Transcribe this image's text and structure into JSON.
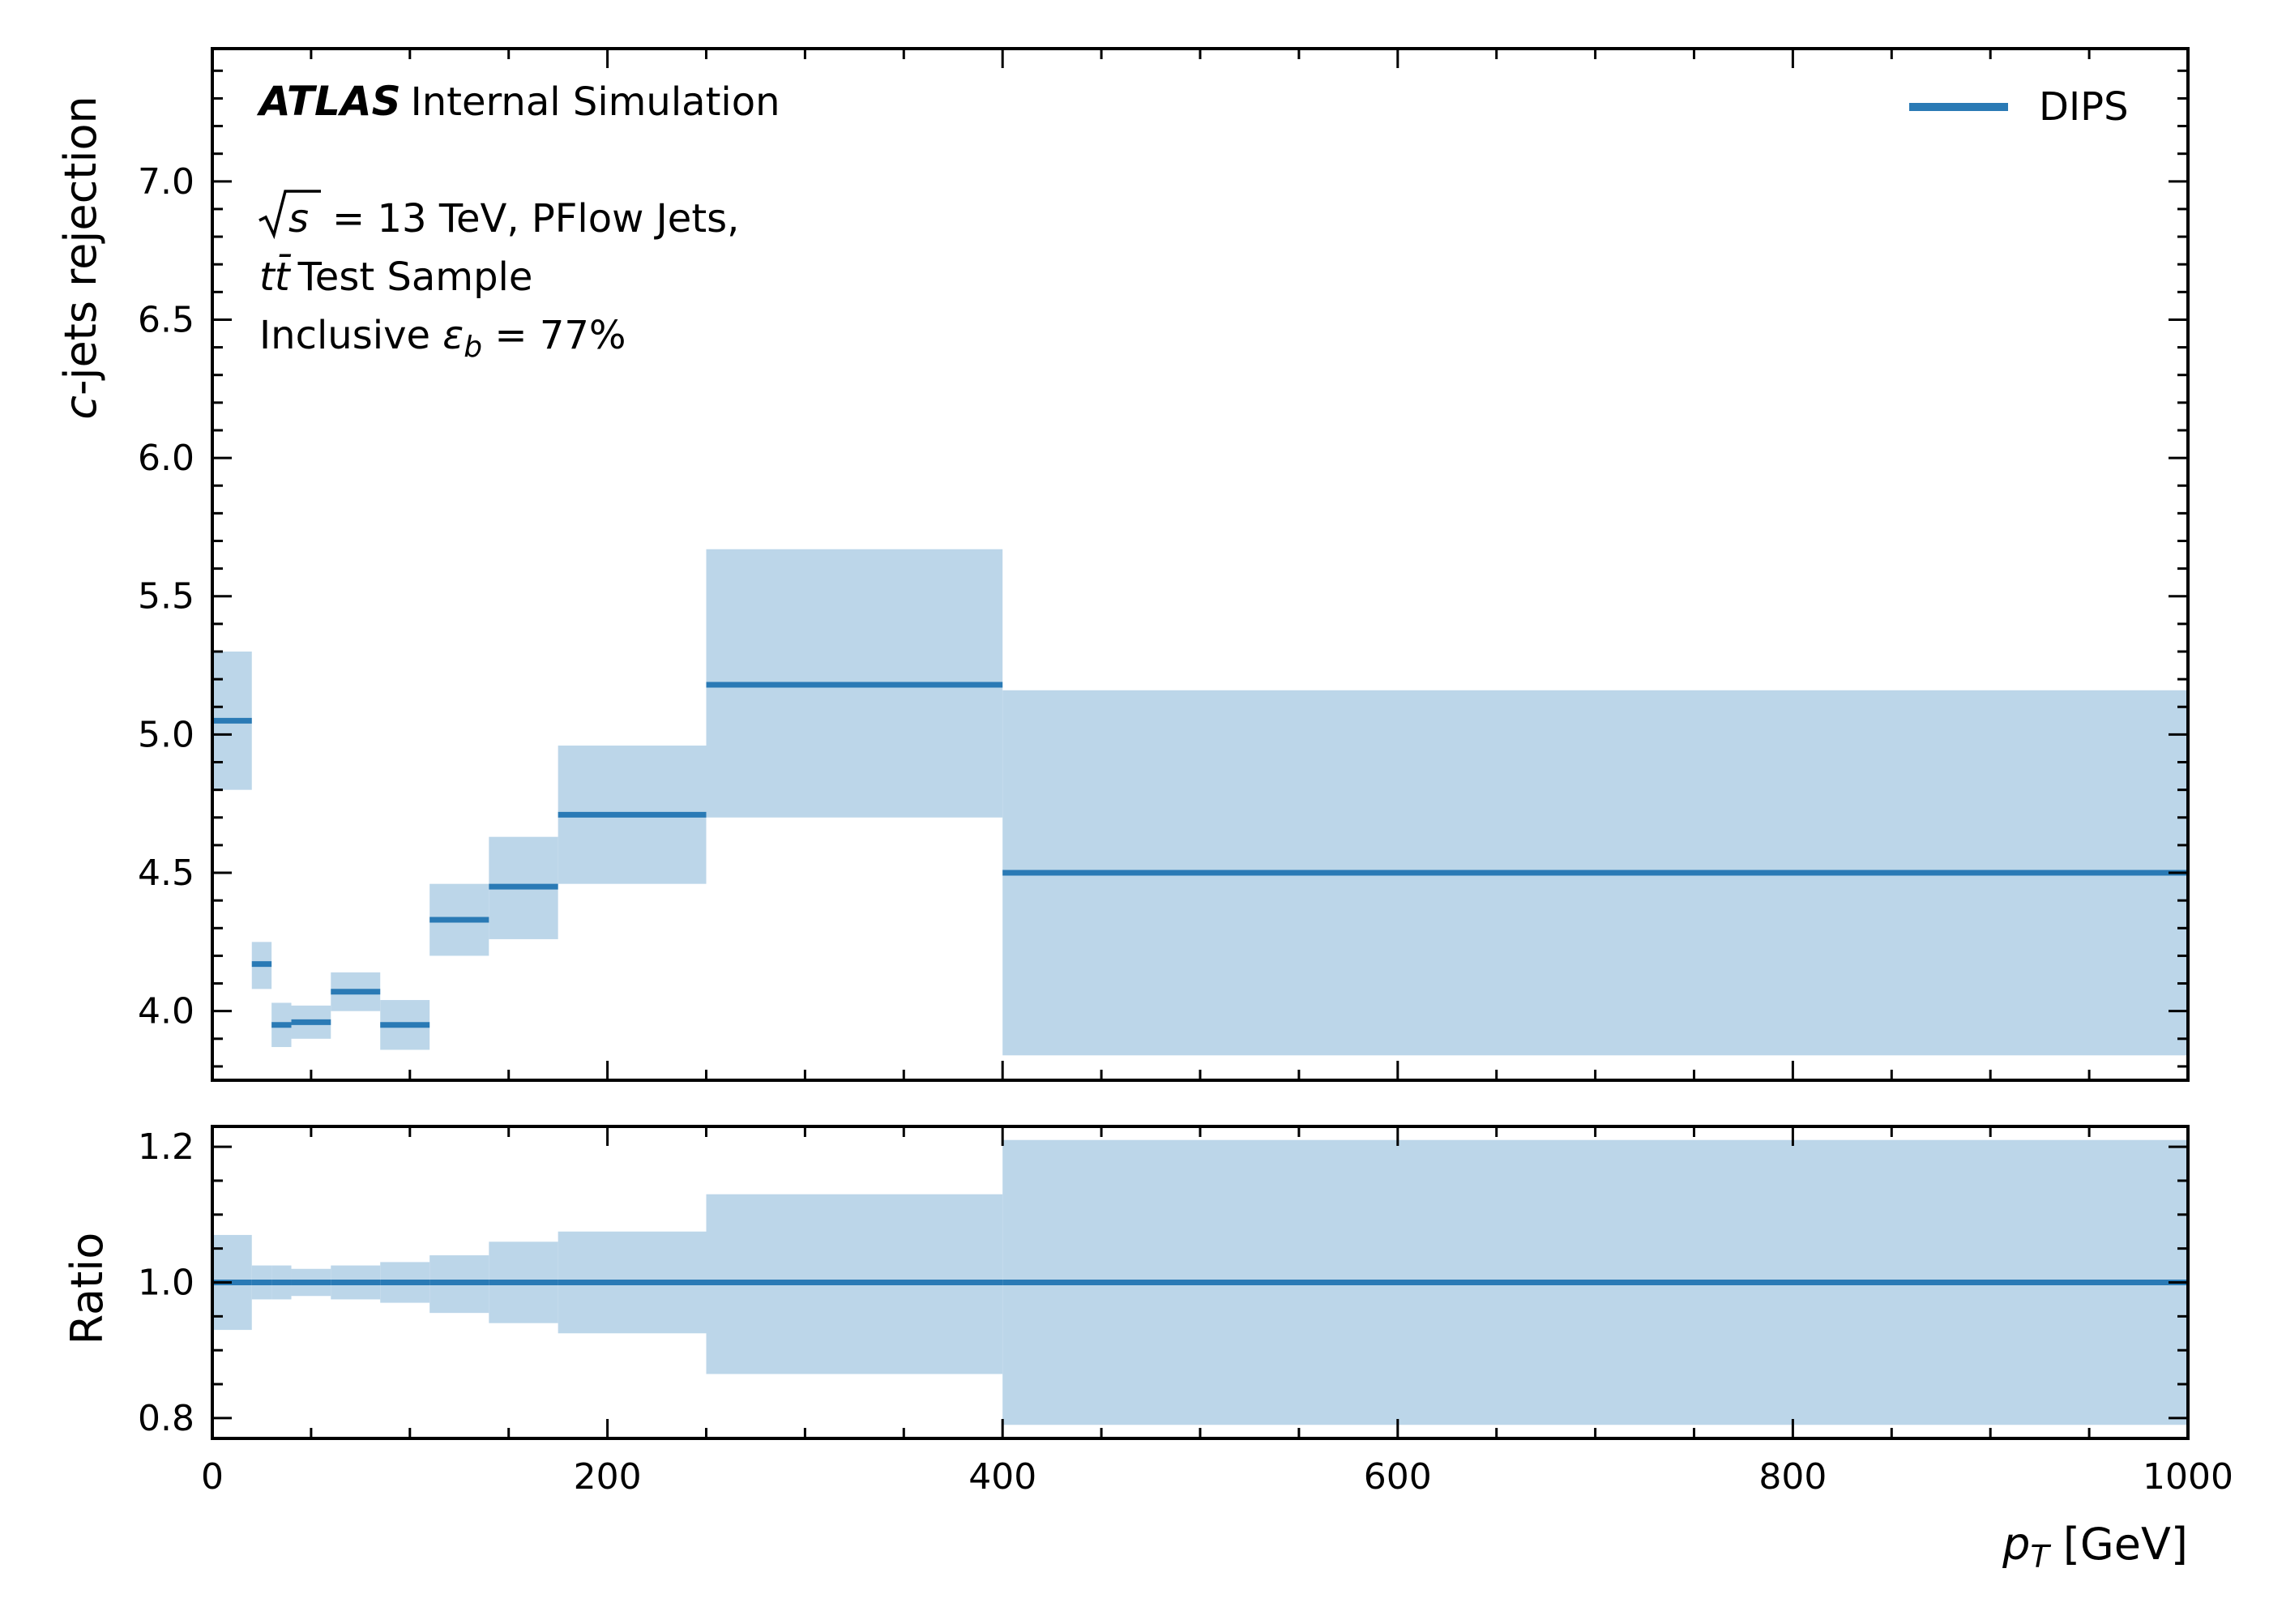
{
  "chart_data": {
    "type": "histogram-step-with-uncertainty",
    "colors": {
      "line": "#2a7ab5",
      "band": "#bcd6e9",
      "frame": "#000000"
    },
    "x_axis": {
      "label": "p_T [GeV]",
      "label_main": "p",
      "label_sub": "T",
      "label_unit": "[GeV]",
      "range": [
        0,
        1000
      ],
      "ticks": [
        0,
        200,
        400,
        600,
        800,
        1000
      ],
      "minor_step": 50
    },
    "annotations": {
      "atlas": "ATLAS",
      "atlas_suffix": "Internal Simulation",
      "energy_line": "= 13 TeV, PFlow Jets,",
      "energy_symbol": "s",
      "sample_line": "Test Sample",
      "sample_symbol": "tt̄",
      "wp_prefix": "Inclusive ",
      "wp_symbol": "ε",
      "wp_sub": "b",
      "wp_suffix": " = 77%"
    },
    "legend": {
      "entries": [
        "DIPS"
      ],
      "placement": "upper-right"
    },
    "bins": [
      {
        "lo": 0,
        "hi": 20
      },
      {
        "lo": 20,
        "hi": 30
      },
      {
        "lo": 30,
        "hi": 40
      },
      {
        "lo": 40,
        "hi": 60
      },
      {
        "lo": 60,
        "hi": 85
      },
      {
        "lo": 85,
        "hi": 110
      },
      {
        "lo": 110,
        "hi": 140
      },
      {
        "lo": 140,
        "hi": 175
      },
      {
        "lo": 175,
        "hi": 250
      },
      {
        "lo": 250,
        "hi": 400
      },
      {
        "lo": 400,
        "hi": 1000
      }
    ],
    "main_panel": {
      "ylabel": "c-jets rejection",
      "ylabel_main": "c",
      "ylabel_rest": "-jets rejection",
      "ylim": [
        3.75,
        7.48
      ],
      "ticks": [
        4.0,
        4.5,
        5.0,
        5.5,
        6.0,
        6.5,
        7.0
      ],
      "tick_labels": [
        "4.0",
        "4.5",
        "5.0",
        "5.5",
        "6.0",
        "6.5",
        "7.0"
      ],
      "minor_step": 0.1,
      "series": [
        {
          "name": "DIPS",
          "values": [
            5.05,
            4.17,
            3.95,
            3.96,
            4.07,
            3.95,
            4.33,
            4.45,
            4.71,
            5.18,
            4.5
          ],
          "band_lo": [
            4.8,
            4.08,
            3.87,
            3.9,
            4.0,
            3.86,
            4.2,
            4.26,
            4.46,
            4.7,
            3.84
          ],
          "band_hi": [
            5.3,
            4.25,
            4.03,
            4.02,
            4.14,
            4.04,
            4.46,
            4.63,
            4.96,
            5.67,
            5.16
          ]
        }
      ]
    },
    "ratio_panel": {
      "ylabel": "Ratio",
      "ylim": [
        0.77,
        1.23
      ],
      "ticks": [
        0.8,
        1.0,
        1.2
      ],
      "tick_labels": [
        "0.8",
        "1.0",
        "1.2"
      ],
      "minor_step": 0.05,
      "values": [
        1.0,
        1.0,
        1.0,
        1.0,
        1.0,
        1.0,
        1.0,
        1.0,
        1.0,
        1.0,
        1.0
      ],
      "band_lo": [
        0.93,
        0.975,
        0.975,
        0.98,
        0.975,
        0.97,
        0.955,
        0.94,
        0.925,
        0.865,
        0.79
      ],
      "band_hi": [
        1.07,
        1.025,
        1.025,
        1.02,
        1.025,
        1.03,
        1.04,
        1.06,
        1.075,
        1.13,
        1.21
      ]
    }
  }
}
